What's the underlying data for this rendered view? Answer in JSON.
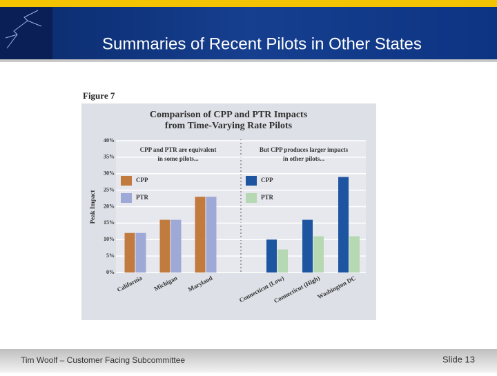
{
  "slide": {
    "title": "Summaries of Recent Pilots in Other States",
    "footer": "Tim Woolf – Customer Facing Subcommittee",
    "slide_number": "Slide 13"
  },
  "figure_label": "Figure 7",
  "chart_data": [
    {
      "type": "bar",
      "title": [
        "Comparison of CPP and PTR Impacts",
        "from Time-Varying Rate Pilots"
      ],
      "y_label": "Peak Impact",
      "annotation": [
        "CPP and PTR are equivalent",
        "in some pilots..."
      ],
      "categories": [
        "California",
        "Michigan",
        "Maryland"
      ],
      "series": [
        {
          "name": "CPP",
          "color": "#c27b3f",
          "values": [
            12,
            16,
            23
          ]
        },
        {
          "name": "PTR",
          "color": "#9ea9d8",
          "values": [
            12,
            16,
            23
          ]
        }
      ],
      "ylim": [
        0,
        40
      ],
      "yticks": [
        {
          "value": 0,
          "label": "0%"
        },
        {
          "value": 5,
          "label": "5%"
        },
        {
          "value": 10,
          "label": "10%"
        },
        {
          "value": 15,
          "label": "15%"
        },
        {
          "value": 20,
          "label": "20%"
        },
        {
          "value": 25,
          "label": "25%"
        },
        {
          "value": 30,
          "label": "30%"
        },
        {
          "value": 35,
          "label": "35%"
        },
        {
          "value": 40,
          "label": "40%"
        }
      ],
      "grid": true
    },
    {
      "type": "bar",
      "annotation": [
        "But CPP produces larger impacts",
        "in other pilots..."
      ],
      "categories": [
        "Connecticut (Low)",
        "Connecticut (High)",
        "Washington DC"
      ],
      "series": [
        {
          "name": "CPP",
          "color": "#1d55a0",
          "values": [
            10,
            16,
            29
          ]
        },
        {
          "name": "PTR",
          "color": "#b6d8b2",
          "values": [
            7,
            11,
            11
          ]
        }
      ],
      "ylim": [
        0,
        40
      ]
    }
  ]
}
